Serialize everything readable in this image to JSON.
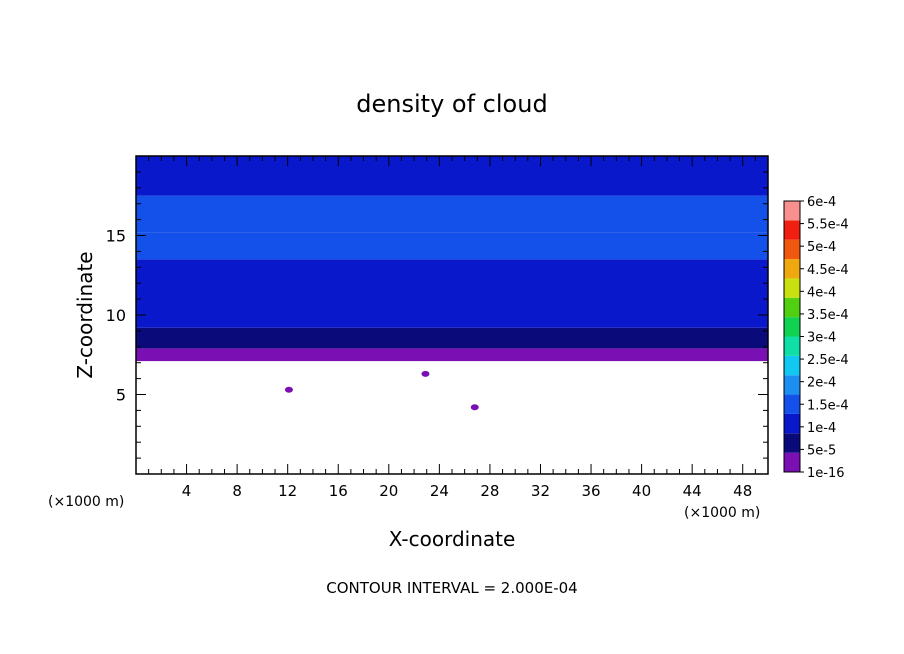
{
  "chart_data": {
    "type": "heatmap",
    "title": "density of cloud",
    "xlabel": "X-coordinate",
    "ylabel": "Z-coordinate",
    "x_unit": "(×1000 m)",
    "y_unit": "(×1000 m)",
    "xlim": [
      0,
      50
    ],
    "ylim": [
      0,
      20
    ],
    "x_ticks": [
      4,
      8,
      12,
      16,
      20,
      24,
      28,
      32,
      36,
      40,
      44,
      48
    ],
    "y_ticks": [
      5,
      10,
      15
    ],
    "footer": "CONTOUR INTERVAL = 2.000E-04",
    "colorbar": {
      "levels": [
        "1e-16",
        "5e-5",
        "1e-4",
        "1.5e-4",
        "2e-4",
        "2.5e-4",
        "3e-4",
        "3.5e-4",
        "4e-4",
        "4.5e-4",
        "5e-4",
        "5.5e-4",
        "6e-4"
      ],
      "colors": [
        "#7a10b4",
        "#0a0a7a",
        "#0a18cc",
        "#1450ea",
        "#1c8ef0",
        "#10c8f0",
        "#10e0a8",
        "#10d250",
        "#50d010",
        "#c8e010",
        "#f0a810",
        "#f05810",
        "#f02010",
        "#f89090"
      ]
    },
    "cloud_layer": {
      "base_z": 7.1,
      "top_z": 20,
      "profile": [
        {
          "z": 7.1,
          "value": "1e-16"
        },
        {
          "z": 7.9,
          "value": "5e-5"
        },
        {
          "z": 9.2,
          "value": "1e-4"
        },
        {
          "z": 13.5,
          "value": "1.5e-4"
        },
        {
          "z": 15.2,
          "value": "1.5e-4"
        },
        {
          "z": 17.5,
          "value": "1e-4"
        }
      ]
    },
    "patches": [
      {
        "x": 12.1,
        "z": 5.3,
        "value": "1e-16"
      },
      {
        "x": 26.8,
        "z": 4.2,
        "value": "1e-16"
      },
      {
        "x": 22.9,
        "z": 6.3,
        "value": "1e-16"
      }
    ]
  }
}
